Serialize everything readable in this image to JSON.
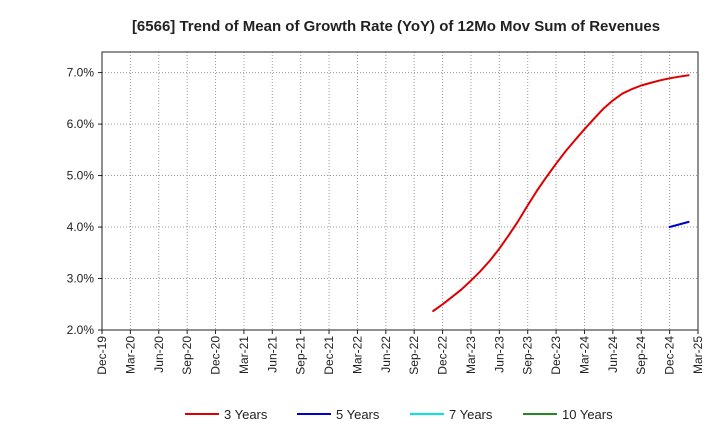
{
  "chart_data": {
    "type": "line",
    "title": "[6566]  Trend of Mean of Growth Rate (YoY) of 12Mo Mov Sum of Revenues",
    "xlabel": "",
    "ylabel": "",
    "ylim": [
      2.0,
      7.4
    ],
    "y_ticks": [
      2.0,
      3.0,
      4.0,
      5.0,
      6.0,
      7.0
    ],
    "y_tick_labels": [
      "2.0%",
      "3.0%",
      "4.0%",
      "5.0%",
      "6.0%",
      "7.0%"
    ],
    "x_tick_labels": [
      "Dec-19",
      "Mar-20",
      "Jun-20",
      "Sep-20",
      "Dec-20",
      "Mar-21",
      "Jun-21",
      "Sep-21",
      "Dec-21",
      "Mar-22",
      "Jun-22",
      "Sep-22",
      "Dec-22",
      "Mar-23",
      "Jun-23",
      "Sep-23",
      "Dec-23",
      "Mar-24",
      "Jun-24",
      "Sep-24",
      "Dec-24",
      "Mar-25"
    ],
    "grid": true,
    "legend_position": "bottom",
    "series": [
      {
        "name": "3 Years",
        "color": "#dd0000",
        "points": [
          [
            11.67,
            2.37
          ],
          [
            12.0,
            2.5
          ],
          [
            12.33,
            2.64
          ],
          [
            12.67,
            2.79
          ],
          [
            13.0,
            2.96
          ],
          [
            13.33,
            3.14
          ],
          [
            13.67,
            3.35
          ],
          [
            14.0,
            3.58
          ],
          [
            14.33,
            3.84
          ],
          [
            14.67,
            4.12
          ],
          [
            15.0,
            4.42
          ],
          [
            15.33,
            4.71
          ],
          [
            15.67,
            4.98
          ],
          [
            16.0,
            5.23
          ],
          [
            16.33,
            5.47
          ],
          [
            16.67,
            5.69
          ],
          [
            17.0,
            5.9
          ],
          [
            17.33,
            6.1
          ],
          [
            17.67,
            6.3
          ],
          [
            18.0,
            6.46
          ],
          [
            18.33,
            6.59
          ],
          [
            18.67,
            6.68
          ],
          [
            19.0,
            6.75
          ],
          [
            19.33,
            6.8
          ],
          [
            19.67,
            6.85
          ],
          [
            20.0,
            6.89
          ],
          [
            20.33,
            6.92
          ],
          [
            20.67,
            6.95
          ]
        ]
      },
      {
        "name": "5 Years",
        "color": "#0000cc",
        "points": [
          [
            20.0,
            4.0
          ],
          [
            20.33,
            4.05
          ],
          [
            20.67,
            4.1
          ]
        ]
      },
      {
        "name": "7 Years",
        "color": "#00e5ee",
        "points": []
      },
      {
        "name": "10 Years",
        "color": "#228822",
        "points": []
      }
    ]
  }
}
